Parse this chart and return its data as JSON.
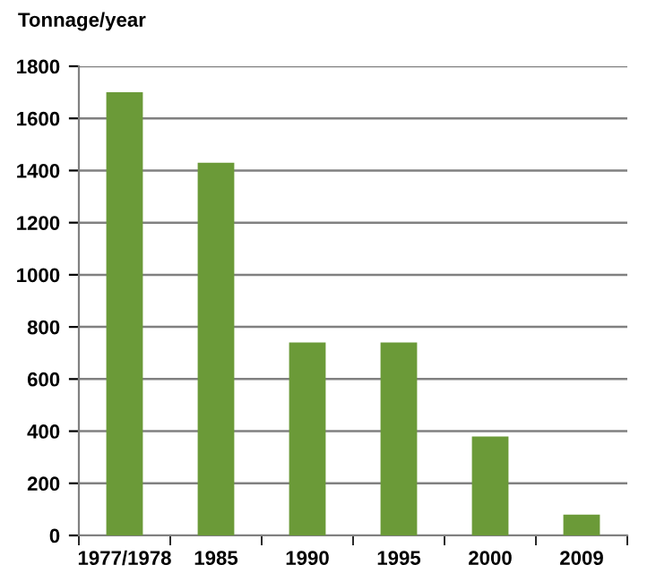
{
  "chart_data": {
    "type": "bar",
    "ylabel": "Tonnage/year",
    "categories": [
      "1977/1978",
      "1985",
      "1990",
      "1995",
      "2000",
      "2009"
    ],
    "values": [
      1700,
      1430,
      740,
      740,
      380,
      80
    ],
    "color": "#6b9a38",
    "ylim": [
      0,
      1800
    ],
    "yticks": [
      0,
      200,
      400,
      600,
      800,
      1000,
      1200,
      1400,
      1600,
      1800
    ],
    "grid": "y"
  }
}
